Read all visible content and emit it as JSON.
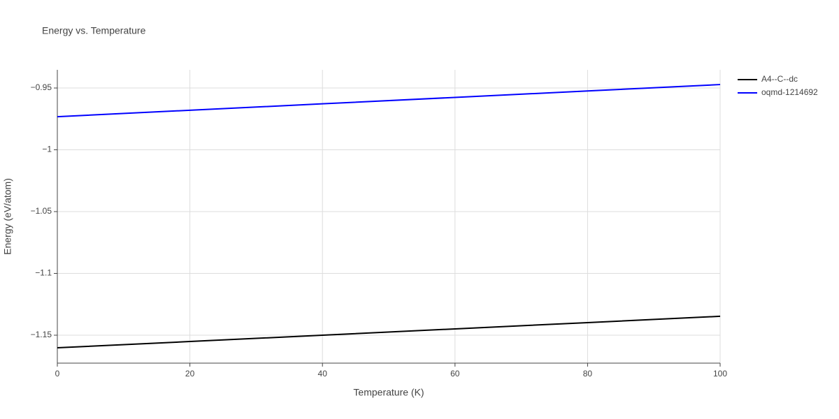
{
  "chart_data": {
    "type": "line",
    "title": "Energy vs. Temperature",
    "xlabel": "Temperature (K)",
    "ylabel": "Energy (eV/atom)",
    "x": [
      0,
      20,
      40,
      60,
      80,
      100
    ],
    "series": [
      {
        "name": "A4--C--dc",
        "color": "#000000",
        "values": [
          -1.1602,
          -1.1551,
          -1.15,
          -1.1449,
          -1.1398,
          -1.1347
        ]
      },
      {
        "name": "oqmd-1214692",
        "color": "#0000ff",
        "values": [
          -0.9732,
          -0.968,
          -0.9628,
          -0.9576,
          -0.9524,
          -0.9472
        ]
      }
    ],
    "xlim": [
      0,
      100
    ],
    "xticks": [
      0,
      20,
      40,
      60,
      80,
      100
    ],
    "ylim": [
      -1.1726,
      -0.9353
    ],
    "yticks": [
      {
        "value": -0.95,
        "label": "−0.95"
      },
      {
        "value": -1,
        "label": "−1"
      },
      {
        "value": -1.05,
        "label": "−1.05"
      },
      {
        "value": -1.1,
        "label": "−1.1"
      },
      {
        "value": -1.15,
        "label": "−1.15"
      }
    ],
    "grid": true,
    "legend": "top-right"
  }
}
